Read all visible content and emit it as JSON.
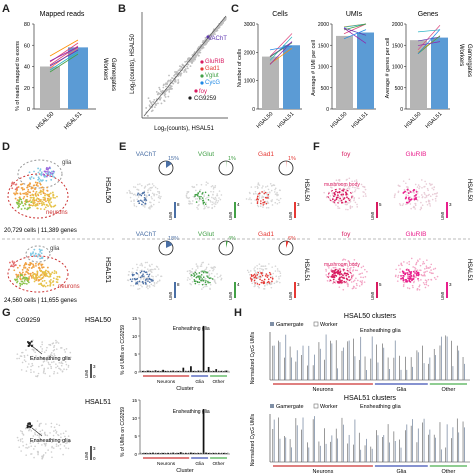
{
  "panel_letters": [
    "A",
    "B",
    "C",
    "D",
    "E",
    "F",
    "G",
    "H"
  ],
  "A": {
    "title": "Mapped reads",
    "ylabel": "% of reads mapped to exons",
    "yticks": [
      "0",
      "20",
      "40",
      "60",
      "80"
    ],
    "categories": [
      "HSAL50",
      "HSAL51"
    ],
    "legend": [
      "Workers",
      "Gamergates"
    ]
  },
  "B": {
    "ylabel": "Log₂(counts), HSAL50",
    "xlabel": "Log₂(counts), HSAL51",
    "genes": [
      "VAChT",
      "GluRIB",
      "Gad1",
      "Vglut",
      "CycG",
      "foy",
      "CG9259"
    ]
  },
  "C": {
    "titles": [
      "Cells",
      "UMIs",
      "Genes"
    ],
    "ylabels": [
      "Number of cells",
      "Average # UMI per cell",
      "Average # genes per cell"
    ],
    "yticks_cells": [
      "0",
      "1000",
      "2000",
      "3000"
    ],
    "yticks_umi": [
      "0",
      "500",
      "1000",
      "1500",
      "2000"
    ],
    "yticks_genes": [
      "0",
      "500",
      "1000",
      "1500",
      "2000"
    ],
    "categories": [
      "HSAL50",
      "HSAL51"
    ],
    "legend": [
      "Workers",
      "Gamergates"
    ]
  },
  "D": {
    "row1": {
      "label": "HSAL50",
      "caption": "20,729 cells | 11,389 genes",
      "glia": "glia",
      "neurons": "neurons"
    },
    "row2": {
      "label": "HSAL51",
      "caption": "24,560 cells | 11,655 genes",
      "glia": "glia",
      "neurons": "neurons"
    }
  },
  "E": {
    "genes": [
      "VAChT",
      "VGlut",
      "Gad1"
    ],
    "row1_pcts": [
      "15%",
      "1%",
      "1%"
    ],
    "row2_pcts": [
      "18%",
      "4%",
      "6%"
    ],
    "scale_row1": [
      "8",
      "4",
      "3"
    ],
    "scale_row2": [
      "8",
      "4",
      "3"
    ],
    "umi": "UMI",
    "row_labels": [
      "HSAL50",
      "HSAL51"
    ]
  },
  "F": {
    "genes": [
      "foy",
      "GluRIB"
    ],
    "mushroom": "mushroom body",
    "scale_row1": [
      "5",
      "3"
    ],
    "scale_row2": [
      "5",
      "3"
    ],
    "umi": "UMI",
    "row_labels": [
      "HSAL50",
      "HSAL51"
    ]
  },
  "G": {
    "gene": "CG9259",
    "rows": [
      "HSAL50",
      "HSAL51"
    ],
    "annot": "Ensheathing glia",
    "umi_max": "3",
    "umi_min": "0",
    "umi": "UMI",
    "ylabel": "% of UMIs on CG9259",
    "xlabel": "Cluster",
    "groups": [
      "Neurons",
      "Glia",
      "Other"
    ],
    "yticks": [
      "0",
      "5",
      "10",
      "15"
    ],
    "chart_data": [
      {
        "type": "bar",
        "title": "HSAL50",
        "ylabel": "% of UMIs on CG9259",
        "xlabel": "Cluster",
        "ylim": [
          0,
          15
        ],
        "values": [
          0.3,
          0.2,
          0.4,
          0.3,
          0.2,
          0.5,
          0.3,
          0.2,
          0.6,
          0.3,
          0.2,
          0.3,
          0.4,
          0.2,
          0.3,
          0.2,
          1.2,
          0.2,
          0.3,
          1.6,
          0.3,
          0.2,
          0.4,
          0.2,
          12.8,
          0.3,
          1.4,
          0.2,
          0.3,
          0.8,
          0.2,
          0.3,
          0.2,
          0.4
        ],
        "groups": [
          "Neurons",
          "Glia",
          "Other"
        ]
      },
      {
        "type": "bar",
        "title": "HSAL51",
        "ylabel": "% of UMIs on CG9259",
        "xlabel": "Cluster",
        "ylim": [
          0,
          15
        ],
        "values": [
          0.2,
          0.3,
          0.2,
          0.3,
          0.4,
          0.2,
          0.3,
          0.2,
          0.3,
          0.2,
          0.3,
          0.2,
          0.4,
          0.2,
          0.3,
          0.5,
          0.2,
          0.3,
          0.2,
          0.4,
          0.3,
          0.2,
          0.3,
          0.2,
          12.5,
          0.4,
          0.3,
          0.2,
          0.3,
          0.2,
          0.3,
          0.2,
          0.3,
          0.2
        ],
        "groups": [
          "Neurons",
          "Glia",
          "Other"
        ]
      }
    ]
  },
  "H": {
    "title1": "HSAL50 clusters",
    "title2": "HSAL51 clusters",
    "legend": [
      "Gamergate",
      "Worker"
    ],
    "annot": "Ensheathing glia",
    "ylabel": "Normalized CycG UMIs",
    "groups": [
      "Neurons",
      "Glia",
      "Other"
    ]
  },
  "chart_data": [
    {
      "type": "bar",
      "title": "Mapped reads",
      "categories": [
        "HSAL50",
        "HSAL51"
      ],
      "values": [
        40,
        58
      ],
      "ylabel": "% of reads mapped to exons",
      "ylim": [
        0,
        80
      ]
    },
    {
      "type": "bar",
      "title": "Cells",
      "categories": [
        "HSAL50",
        "HSAL51"
      ],
      "values": [
        1850,
        2250
      ],
      "ylabel": "Number of cells",
      "ylim": [
        0,
        3000
      ]
    },
    {
      "type": "bar",
      "title": "UMIs",
      "categories": [
        "HSAL50",
        "HSAL51"
      ],
      "values": [
        1720,
        1800
      ],
      "ylabel": "Average # UMI per cell",
      "ylim": [
        0,
        2000
      ]
    },
    {
      "type": "bar",
      "title": "Genes",
      "categories": [
        "HSAL50",
        "HSAL51"
      ],
      "values": [
        1620,
        1680
      ],
      "ylabel": "Average # genes per cell",
      "ylim": [
        0,
        2000
      ]
    }
  ]
}
